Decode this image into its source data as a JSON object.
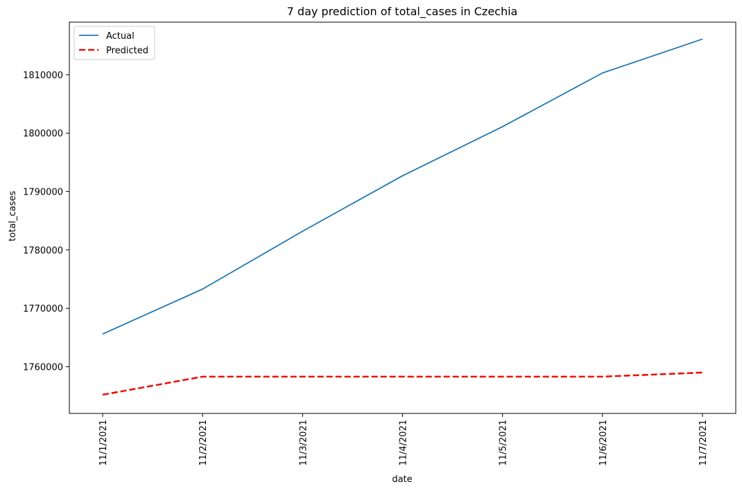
{
  "chart_data": {
    "type": "line",
    "title": "7 day prediction of total_cases in Czechia",
    "xlabel": "date",
    "ylabel": "total_cases",
    "categories": [
      "11/1/2021",
      "11/2/2021",
      "11/3/2021",
      "11/4/2021",
      "11/5/2021",
      "11/6/2021",
      "11/7/2021"
    ],
    "yticks": [
      1760000,
      1770000,
      1780000,
      1790000,
      1800000,
      1810000
    ],
    "ylim": [
      1752000,
      1819000
    ],
    "grid": false,
    "legend_position": "top-left",
    "series": [
      {
        "name": "Actual",
        "color": "#1f77b4",
        "style": "solid",
        "values": [
          1765600,
          1773300,
          1783200,
          1792700,
          1801100,
          1810300,
          1816100
        ]
      },
      {
        "name": "Predicted",
        "color": "#e8120c",
        "style": "dashed",
        "values": [
          1755200,
          1758300,
          1758300,
          1758300,
          1758300,
          1758300,
          1759000
        ]
      }
    ]
  }
}
